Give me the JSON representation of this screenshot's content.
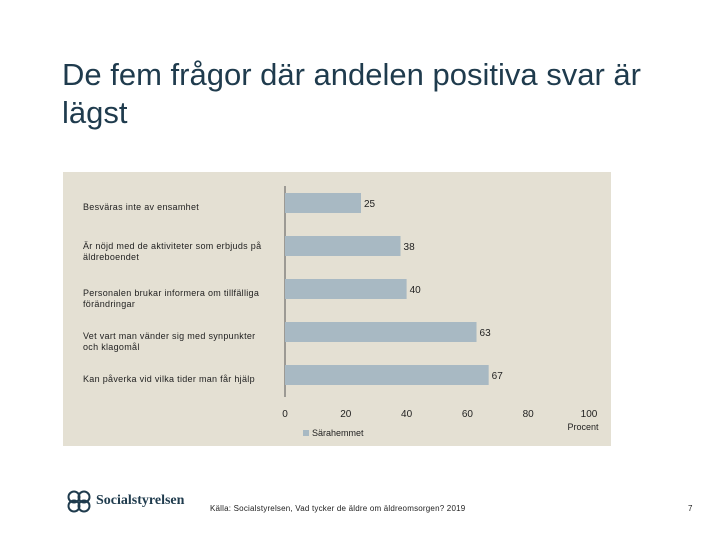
{
  "slide": {
    "title": "De fem frågor där andelen positiva svar är lägst",
    "source": "Källa: Socialstyrelsen, Vad tycker de äldre om äldreomsorgen? 2019",
    "page_number": "7",
    "logo_text": "Socialstyrelsen"
  },
  "colors": {
    "bar": "#a8b9c3",
    "panel": "#e4e0d3",
    "title": "#1f3b4d"
  },
  "chart_data": {
    "type": "bar",
    "orientation": "horizontal",
    "categories": [
      "Besväras inte av ensamhet",
      "Är nöjd med de aktiviteter som erbjuds på äldreboendet",
      "Personalen brukar informera om tillfälliga förändringar",
      "Vet vart man vänder sig med synpunkter och klagomål",
      "Kan påverka vid vilka tider man får hjälp"
    ],
    "series": [
      {
        "name": "Särahemmet",
        "values": [
          25,
          38,
          40,
          63,
          67
        ]
      }
    ],
    "xlim": [
      0,
      100
    ],
    "xticks": [
      "0",
      "20",
      "40",
      "60",
      "80",
      "100"
    ],
    "xlabel": "Procent",
    "legend": "bottom-left",
    "grid": false
  }
}
